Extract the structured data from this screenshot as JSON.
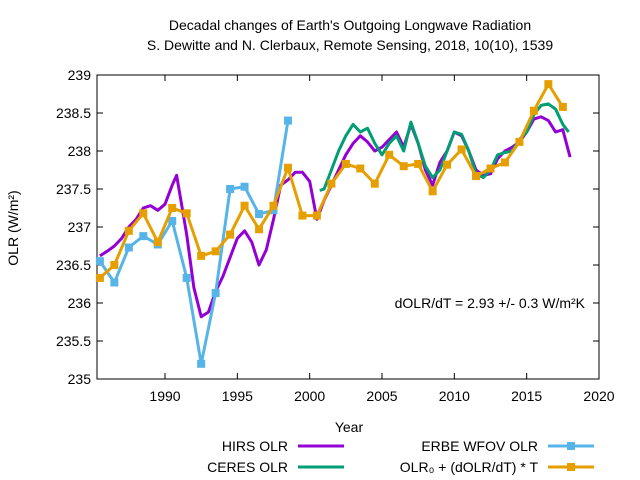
{
  "chart_data": {
    "type": "line",
    "title": "Decadal changes of Earth's Outgoing Longwave Radiation",
    "subtitle": "S. Dewitte and N. Clerbaux, Remote Sensing, 2018, 10(10), 1539",
    "xlabel": "Year",
    "ylabel": "OLR (W/m²)",
    "xlim": [
      1985.3,
      2020
    ],
    "ylim": [
      235,
      239
    ],
    "x_ticks": [
      1990,
      1995,
      2000,
      2005,
      2010,
      2015,
      2020
    ],
    "y_ticks": [
      235,
      235.5,
      236,
      236.5,
      237,
      237.5,
      238,
      238.5,
      239
    ],
    "annotation": "dOLR/dT = 2.93 +/- 0.3 W/m²K",
    "legend_position": "bottom",
    "series": [
      {
        "name": "HIRS OLR",
        "color": "#9400d3",
        "marker": "none",
        "x": [
          1985.5,
          1986.0,
          1986.5,
          1987.0,
          1987.5,
          1988.0,
          1988.5,
          1989.0,
          1989.5,
          1990.0,
          1990.5,
          1990.8,
          1991.1,
          1991.5,
          1992.0,
          1992.5,
          1993.0,
          1993.5,
          1994.0,
          1994.5,
          1995.0,
          1995.5,
          1996.0,
          1996.5,
          1997.0,
          1997.5,
          1998.0,
          1998.5,
          1999.0,
          1999.5,
          2000.0,
          2000.5,
          2001.0,
          2001.5,
          2002.0,
          2002.5,
          2003.0,
          2003.5,
          2004.0,
          2004.5,
          2005.0,
          2005.5,
          2006.0,
          2006.5,
          2007.0,
          2007.5,
          2008.0,
          2008.5,
          2009.0,
          2009.5,
          2010.0,
          2010.5,
          2011.0,
          2011.5,
          2012.0,
          2012.5,
          2013.0,
          2013.5,
          2014.0,
          2014.5,
          2015.0,
          2015.5,
          2016.0,
          2016.5,
          2017.0,
          2017.5,
          2018.0
        ],
        "values": [
          236.62,
          236.68,
          236.75,
          236.85,
          237.0,
          237.1,
          237.25,
          237.28,
          237.22,
          237.3,
          237.55,
          237.68,
          237.35,
          236.9,
          236.2,
          235.82,
          235.88,
          236.15,
          236.35,
          236.6,
          236.85,
          236.95,
          236.8,
          236.5,
          236.7,
          237.1,
          237.55,
          237.62,
          237.72,
          237.72,
          237.6,
          237.1,
          237.35,
          237.55,
          237.75,
          237.95,
          238.1,
          238.2,
          238.12,
          238.0,
          238.05,
          238.15,
          238.25,
          238.05,
          238.35,
          238.1,
          237.75,
          237.55,
          237.85,
          238.0,
          238.25,
          238.2,
          238.0,
          237.75,
          237.68,
          237.7,
          237.9,
          238.0,
          238.05,
          238.12,
          238.25,
          238.42,
          238.45,
          238.4,
          238.25,
          238.28,
          237.92
        ]
      },
      {
        "name": "CERES OLR",
        "color": "#009e73",
        "marker": "none",
        "x": [
          2000.7,
          2001.0,
          2001.5,
          2002.0,
          2002.5,
          2003.0,
          2003.5,
          2004.0,
          2004.5,
          2005.0,
          2005.5,
          2006.0,
          2006.5,
          2007.0,
          2007.5,
          2008.0,
          2008.5,
          2009.0,
          2009.5,
          2010.0,
          2010.5,
          2011.0,
          2011.5,
          2012.0,
          2012.5,
          2013.0,
          2013.5,
          2014.0,
          2014.5,
          2015.0,
          2015.5,
          2016.0,
          2016.5,
          2017.0,
          2017.5,
          2017.9
        ],
        "values": [
          237.48,
          237.5,
          237.75,
          238.0,
          238.2,
          238.35,
          238.25,
          238.3,
          238.1,
          237.95,
          238.1,
          238.2,
          238.0,
          238.38,
          238.1,
          237.8,
          237.65,
          237.75,
          238.0,
          238.25,
          238.22,
          238.0,
          237.7,
          237.65,
          237.75,
          237.95,
          237.98,
          238.0,
          238.15,
          238.25,
          238.48,
          238.6,
          238.62,
          238.55,
          238.35,
          238.25
        ]
      },
      {
        "name": "ERBE WFOV OLR",
        "color": "#56b4e9",
        "marker": "square",
        "x": [
          1985.5,
          1986.5,
          1987.5,
          1988.5,
          1989.5,
          1990.5,
          1991.5,
          1992.5,
          1993.5,
          1994.5,
          1995.5,
          1996.5,
          1997.5,
          1998.5
        ],
        "values": [
          236.55,
          236.27,
          236.73,
          236.88,
          236.77,
          237.08,
          236.33,
          235.2,
          236.13,
          237.5,
          237.53,
          237.17,
          237.22,
          238.4
        ]
      },
      {
        "name": "OLR₀ + (dOLR/dT) * T",
        "color": "#e69f00",
        "marker": "square",
        "x": [
          1985.5,
          1986.5,
          1987.5,
          1988.5,
          1989.5,
          1990.5,
          1991.5,
          1992.5,
          1993.5,
          1994.5,
          1995.5,
          1996.5,
          1997.5,
          1998.5,
          1999.5,
          2000.5,
          2001.5,
          2002.5,
          2003.5,
          2004.5,
          2005.5,
          2006.5,
          2007.5,
          2008.5,
          2009.5,
          2010.5,
          2011.5,
          2012.5,
          2013.5,
          2014.5,
          2015.5,
          2016.5,
          2017.5
        ],
        "values": [
          236.33,
          236.5,
          236.95,
          237.18,
          236.8,
          237.25,
          237.18,
          236.62,
          236.68,
          236.9,
          237.28,
          236.97,
          237.28,
          237.78,
          237.15,
          237.15,
          237.57,
          237.83,
          237.77,
          237.57,
          237.95,
          237.8,
          237.83,
          237.47,
          237.82,
          238.02,
          237.67,
          237.77,
          237.85,
          238.12,
          238.53,
          238.88,
          238.58
        ]
      }
    ]
  }
}
